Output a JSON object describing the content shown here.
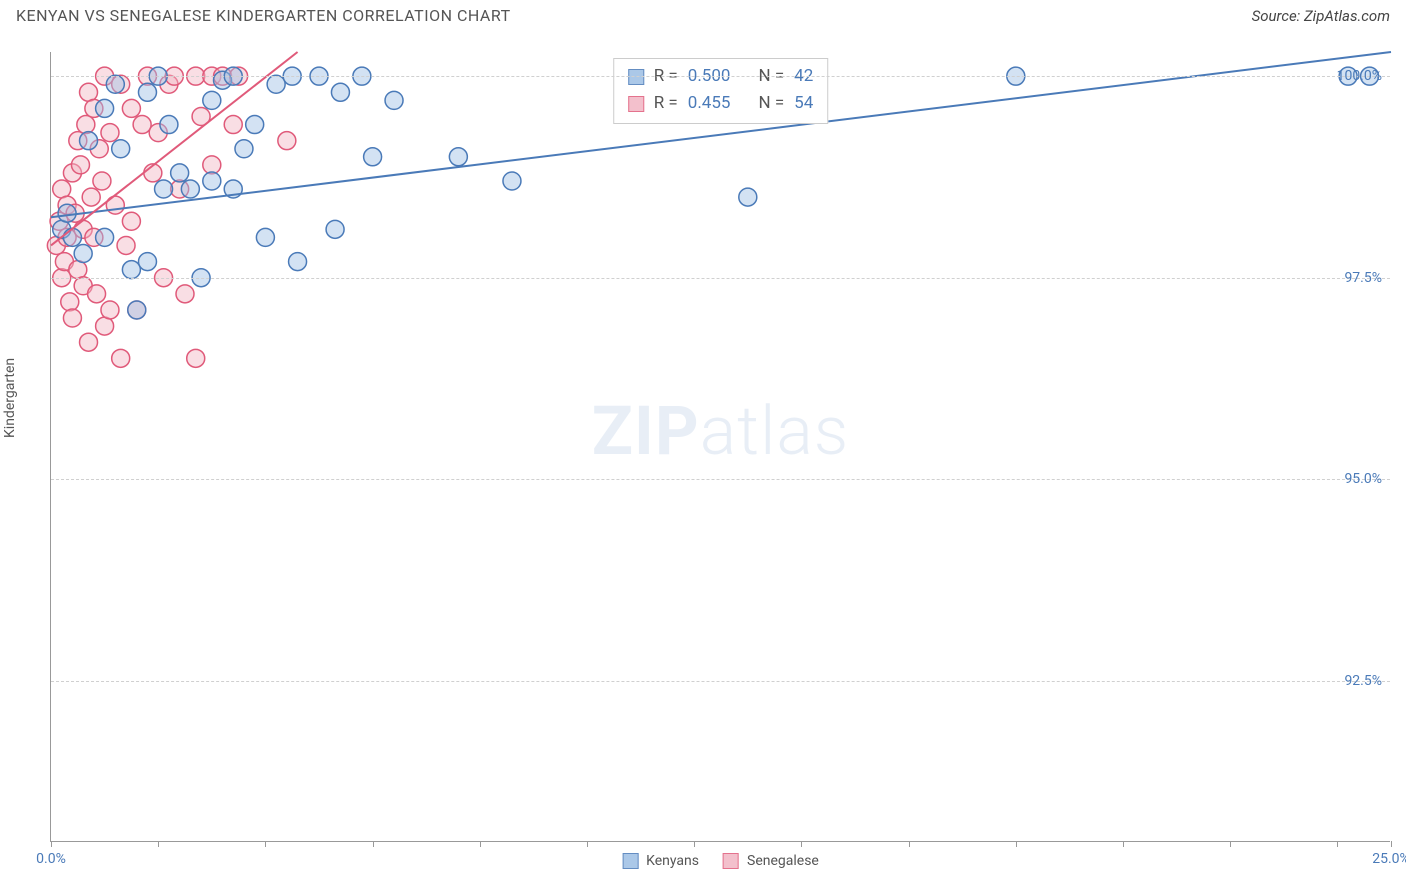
{
  "title": "KENYAN VS SENEGALESE KINDERGARTEN CORRELATION CHART",
  "source_label": "Source: ZipAtlas.com",
  "watermark_zip": "ZIP",
  "watermark_atlas": "atlas",
  "ylabel": "Kindergarten",
  "chart": {
    "type": "scatter",
    "xlim": [
      0,
      25
    ],
    "ylim": [
      90.5,
      100.3
    ],
    "x_ticks": [
      0,
      2,
      4,
      6,
      8,
      10,
      12,
      14,
      16,
      18,
      20,
      22,
      24,
      25
    ],
    "x_tick_labels": {
      "0": "0.0%",
      "25": "25.0%"
    },
    "y_gridlines": [
      92.5,
      95.0,
      97.5,
      100.0
    ],
    "y_tick_labels": {
      "92.5": "92.5%",
      "95.0": "95.0%",
      "97.5": "97.5%",
      "100.0": "100.0%"
    },
    "grid_color": "#d0d0d0",
    "axis_color": "#999999",
    "background_color": "#ffffff",
    "marker_radius": 9,
    "marker_stroke_width": 1.5,
    "trend_line_width": 2,
    "series": [
      {
        "name": "Kenyans",
        "fill": "#9dbfe4",
        "fill_opacity": 0.45,
        "stroke": "#4a7ab8",
        "R": "0.500",
        "N": "42",
        "trend": {
          "x1": 0,
          "y1": 98.25,
          "x2": 25,
          "y2": 100.3
        },
        "points": [
          [
            0.2,
            98.1
          ],
          [
            0.3,
            98.3
          ],
          [
            0.4,
            98.0
          ],
          [
            0.6,
            97.8
          ],
          [
            0.7,
            99.2
          ],
          [
            1.0,
            99.6
          ],
          [
            1.0,
            98.0
          ],
          [
            1.2,
            99.9
          ],
          [
            1.3,
            99.1
          ],
          [
            1.5,
            97.6
          ],
          [
            1.6,
            97.1
          ],
          [
            1.8,
            97.7
          ],
          [
            1.8,
            99.8
          ],
          [
            2.0,
            100.0
          ],
          [
            2.1,
            98.6
          ],
          [
            2.2,
            99.4
          ],
          [
            2.4,
            98.8
          ],
          [
            2.6,
            98.6
          ],
          [
            2.8,
            97.5
          ],
          [
            3.0,
            99.7
          ],
          [
            3.0,
            98.7
          ],
          [
            3.2,
            99.95
          ],
          [
            3.4,
            98.6
          ],
          [
            3.4,
            100.0
          ],
          [
            3.6,
            99.1
          ],
          [
            3.8,
            99.4
          ],
          [
            4.0,
            98.0
          ],
          [
            4.2,
            99.9
          ],
          [
            4.5,
            100.0
          ],
          [
            4.6,
            97.7
          ],
          [
            5.0,
            100.0
          ],
          [
            5.3,
            98.1
          ],
          [
            5.4,
            99.8
          ],
          [
            5.8,
            100.0
          ],
          [
            6.0,
            99.0
          ],
          [
            6.4,
            99.7
          ],
          [
            7.6,
            99.0
          ],
          [
            8.6,
            98.7
          ],
          [
            13.0,
            98.5
          ],
          [
            18.0,
            100.0
          ],
          [
            24.2,
            100.0
          ],
          [
            24.6,
            100.0
          ]
        ]
      },
      {
        "name": "Senegalese",
        "fill": "#f1b6c4",
        "fill_opacity": 0.45,
        "stroke": "#e05a7a",
        "R": "0.455",
        "N": "54",
        "trend": {
          "x1": 0,
          "y1": 97.9,
          "x2": 4.6,
          "y2": 100.3
        },
        "points": [
          [
            0.1,
            97.9
          ],
          [
            0.15,
            98.2
          ],
          [
            0.2,
            97.5
          ],
          [
            0.2,
            98.6
          ],
          [
            0.25,
            97.7
          ],
          [
            0.3,
            98.0
          ],
          [
            0.3,
            98.4
          ],
          [
            0.35,
            97.2
          ],
          [
            0.4,
            98.8
          ],
          [
            0.4,
            97.0
          ],
          [
            0.45,
            98.3
          ],
          [
            0.5,
            99.2
          ],
          [
            0.5,
            97.6
          ],
          [
            0.55,
            98.9
          ],
          [
            0.6,
            98.1
          ],
          [
            0.6,
            97.4
          ],
          [
            0.65,
            99.4
          ],
          [
            0.7,
            99.8
          ],
          [
            0.7,
            96.7
          ],
          [
            0.75,
            98.5
          ],
          [
            0.8,
            98.0
          ],
          [
            0.8,
            99.6
          ],
          [
            0.85,
            97.3
          ],
          [
            0.9,
            99.1
          ],
          [
            0.95,
            98.7
          ],
          [
            1.0,
            96.9
          ],
          [
            1.0,
            100.0
          ],
          [
            1.1,
            97.1
          ],
          [
            1.1,
            99.3
          ],
          [
            1.2,
            98.4
          ],
          [
            1.3,
            96.5
          ],
          [
            1.3,
            99.9
          ],
          [
            1.4,
            97.9
          ],
          [
            1.5,
            99.6
          ],
          [
            1.5,
            98.2
          ],
          [
            1.6,
            97.1
          ],
          [
            1.7,
            99.4
          ],
          [
            1.8,
            100.0
          ],
          [
            1.9,
            98.8
          ],
          [
            2.0,
            99.3
          ],
          [
            2.1,
            97.5
          ],
          [
            2.2,
            99.9
          ],
          [
            2.3,
            100.0
          ],
          [
            2.4,
            98.6
          ],
          [
            2.5,
            97.3
          ],
          [
            2.7,
            100.0
          ],
          [
            2.7,
            96.5
          ],
          [
            2.8,
            99.5
          ],
          [
            3.0,
            100.0
          ],
          [
            3.0,
            98.9
          ],
          [
            3.2,
            100.0
          ],
          [
            3.4,
            99.4
          ],
          [
            3.5,
            100.0
          ],
          [
            4.4,
            99.2
          ]
        ]
      }
    ]
  },
  "stats_labels": {
    "R": "R =",
    "N": "N ="
  },
  "bottom_legend_labels": [
    "Kenyans",
    "Senegalese"
  ]
}
